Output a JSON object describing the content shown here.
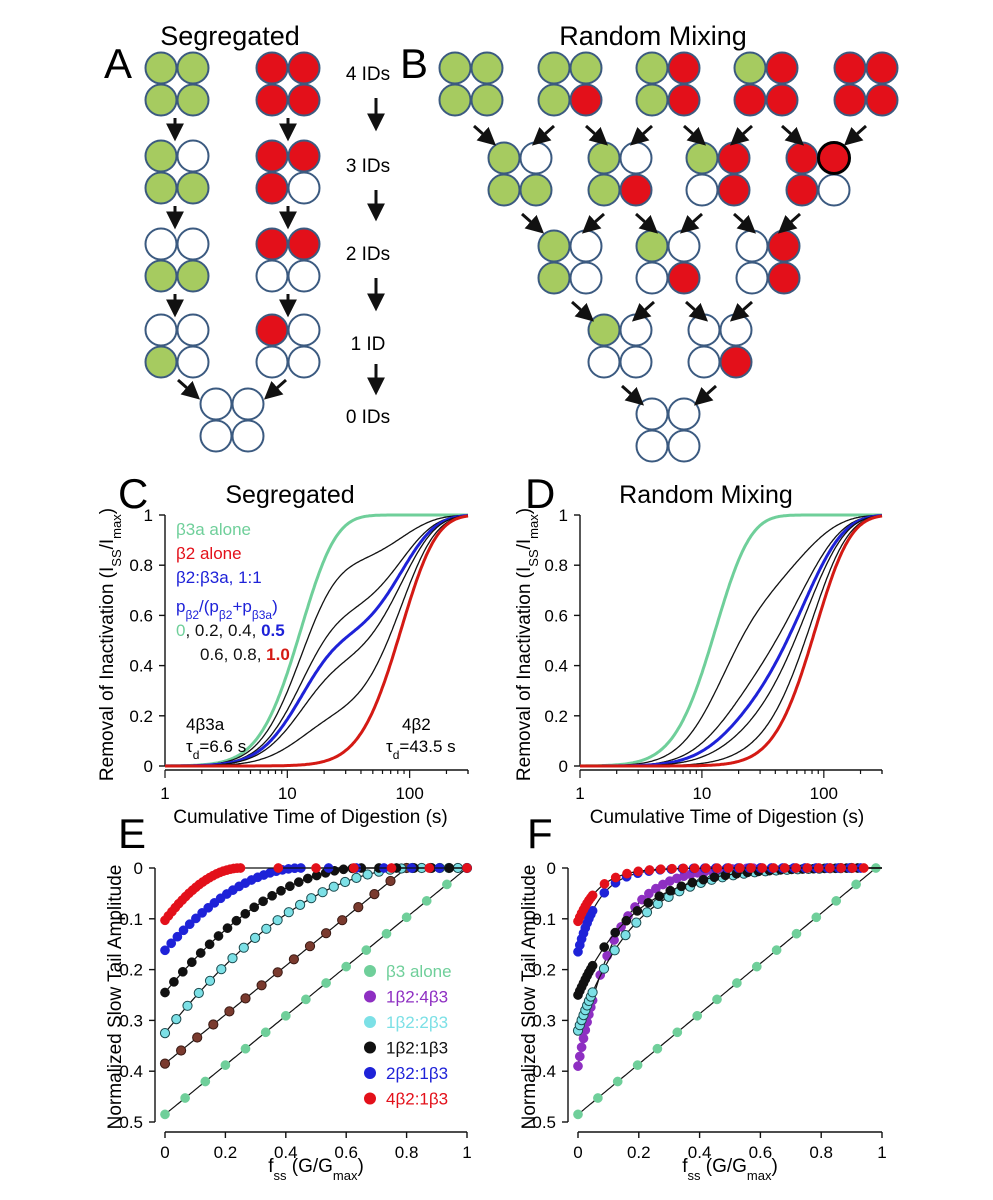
{
  "panels": {
    "A": {
      "letter": "A",
      "title": "Segregated"
    },
    "B": {
      "letter": "B",
      "title": "Random Mixing"
    },
    "C": {
      "letter": "C",
      "title": "Segregated"
    },
    "D": {
      "letter": "D",
      "title": "Random Mixing"
    },
    "E": {
      "letter": "E"
    },
    "F": {
      "letter": "F"
    }
  },
  "id_labels": [
    "4 IDs",
    "3 IDs",
    "2 IDs",
    "1 ID",
    "0 IDs"
  ],
  "colors": {
    "green": "#a6cb60",
    "red": "#e3101a",
    "empty": "#ffffff",
    "outline": "#3b5a80",
    "teal": "#6fcf9a",
    "blue": "#1e22d8",
    "purple": "#8e2fc2",
    "cyan": "#7ce0e6",
    "black": "#111111",
    "brown": "#7a3a2e",
    "darkred": "#d41a14"
  },
  "schematics": {
    "A": [
      {
        "row": 0,
        "quads": [
          "GGGG",
          "RRRR"
        ]
      },
      {
        "row": 1,
        "quads": [
          "GOGG",
          "RRRO"
        ]
      },
      {
        "row": 2,
        "quads": [
          "OOGG",
          "RROO"
        ]
      },
      {
        "row": 3,
        "quads": [
          "OOGO",
          "ROOO"
        ]
      },
      {
        "row": 4,
        "quads": [
          "OOOO"
        ]
      }
    ],
    "B": [
      {
        "row": 0,
        "quads": [
          "GGGG",
          "GGGR",
          "GRGR",
          "GRRR",
          "RRRR"
        ]
      },
      {
        "row": 1,
        "quads": [
          "GOGG",
          "GOGR",
          "GROR",
          "RRRO"
        ]
      },
      {
        "row": 2,
        "quads": [
          "GOGO",
          "GOOR",
          "OROR"
        ]
      },
      {
        "row": 3,
        "quads": [
          "GOOO",
          "OOOR"
        ]
      },
      {
        "row": 4,
        "quads": [
          "OOOO"
        ]
      }
    ]
  },
  "chart_data": [
    {
      "panel": "C",
      "type": "line",
      "title": "Segregated",
      "xlabel": "Cumulative Time of Digestion (s)",
      "ylabel": "Removal of Inactivation (I_SS/I_max)",
      "xscale": "log",
      "xlim": [
        1,
        300
      ],
      "ylim": [
        0,
        1
      ],
      "xticks": [
        "1",
        "10",
        "100"
      ],
      "yticks": [
        "0",
        "0.2",
        "0.4",
        "0.6",
        "0.8",
        "1"
      ],
      "legend": [
        "β3a alone",
        "β2 alone",
        "β2:β3a, 1:1"
      ],
      "fraction_label": "pβ2/(pβ2+pβ3a)",
      "fraction_values": [
        "0",
        "0.2",
        "0.4",
        "0.5",
        "0.6",
        "0.8",
        "1.0"
      ],
      "annotations": [
        "4β3a",
        "τd=6.6 s",
        "4β2",
        "τd=43.5 s"
      ],
      "model": {
        "tau_fast": 6.6,
        "tau_slow": 43.5,
        "n": 4,
        "form": "p*(1-exp(-t/43.5))^4 + (1-p)*(1-exp(-t/6.6))^4"
      },
      "series": [
        {
          "name": "β3a alone",
          "p": 0.0
        },
        {
          "p": 0.2
        },
        {
          "p": 0.4
        },
        {
          "name": "β2:β3a, 1:1",
          "p": 0.5
        },
        {
          "p": 0.6
        },
        {
          "p": 0.8
        },
        {
          "name": "β2 alone",
          "p": 1.0
        }
      ]
    },
    {
      "panel": "D",
      "type": "line",
      "title": "Random Mixing",
      "xlabel": "Cumulative Time of Digestion (s)",
      "ylabel": "Removal of Inactivation (I_SS/I_max)",
      "xscale": "log",
      "xlim": [
        1,
        300
      ],
      "ylim": [
        0,
        1
      ],
      "xticks": [
        "1",
        "10",
        "100"
      ],
      "yticks": [
        "0",
        "0.2",
        "0.4",
        "0.6",
        "0.8",
        "1"
      ],
      "model": {
        "tau_fast": 6.6,
        "tau_slow": 43.5,
        "n": 4,
        "form": "(p*(1-exp(-t/43.5)) + (1-p)*(1-exp(-t/6.6)))^4"
      },
      "series": [
        {
          "p": 0.0
        },
        {
          "p": 0.2
        },
        {
          "p": 0.4
        },
        {
          "p": 0.5
        },
        {
          "p": 0.6
        },
        {
          "p": 0.8
        },
        {
          "p": 1.0
        }
      ]
    },
    {
      "panel": "E",
      "type": "scatter",
      "xlabel": "f_ss (G/G_max)",
      "ylabel": "Normalized Slow Tail Amplitude",
      "xlim": [
        0,
        1
      ],
      "ylim": [
        0.5,
        0
      ],
      "yinverted": true,
      "xticks": [
        "0",
        "0.2",
        "0.4",
        "0.6",
        "0.8",
        "1"
      ],
      "yticks": [
        "0",
        "0.1",
        "0.2",
        "0.3",
        "0.4",
        "0.5"
      ],
      "legend": [
        "β3 alone",
        "1β2:4β3",
        "1β2:2β3",
        "1β2:1β3",
        "2β2:1β3",
        "4β2:1β3"
      ],
      "series": [
        {
          "name": "β3 alone",
          "y0": 0.485,
          "xend": 1.0,
          "shape": "linear"
        },
        {
          "y0": 0.385,
          "xend": 0.8,
          "shape": "linear"
        },
        {
          "name": "1β2:2β3",
          "y0": 0.325,
          "xend": 0.82,
          "shape": "concave"
        },
        {
          "name": "1β2:1β3",
          "y0": 0.245,
          "xend": 0.65,
          "shape": "concave"
        },
        {
          "name": "2β2:1β3",
          "y0": 0.162,
          "xend": 0.45,
          "shape": "concave"
        },
        {
          "name": "4β2:1β3",
          "y0": 0.103,
          "xend": 0.25,
          "shape": "concave"
        }
      ]
    },
    {
      "panel": "F",
      "type": "scatter",
      "xlabel": "f_ss (G/G_max)",
      "ylabel": "Normalized Slow Tail Amplitude",
      "xlim": [
        0,
        1
      ],
      "ylim": [
        0.5,
        0
      ],
      "yinverted": true,
      "xticks": [
        "0",
        "0.2",
        "0.4",
        "0.6",
        "0.8",
        "1"
      ],
      "yticks": [
        "0",
        "0.1",
        "0.2",
        "0.3",
        "0.4",
        "0.5"
      ],
      "series": [
        {
          "name": "β3 alone",
          "y0": 0.485,
          "xend": 0.98,
          "shape": "linear"
        },
        {
          "name": "1β2:4β3",
          "y0": 0.39,
          "xend": 0.6,
          "shape": "steep"
        },
        {
          "name": "1β2:2β3",
          "y0": 0.32,
          "xend": 0.9,
          "shape": "steep"
        },
        {
          "name": "1β2:1β3",
          "y0": 0.25,
          "xend": 0.92,
          "shape": "steep"
        },
        {
          "name": "2β2:1β3",
          "y0": 0.165,
          "xend": 0.93,
          "shape": "steep"
        },
        {
          "name": "4β2:1β3",
          "y0": 0.105,
          "xend": 0.94,
          "shape": "steep"
        }
      ]
    }
  ]
}
